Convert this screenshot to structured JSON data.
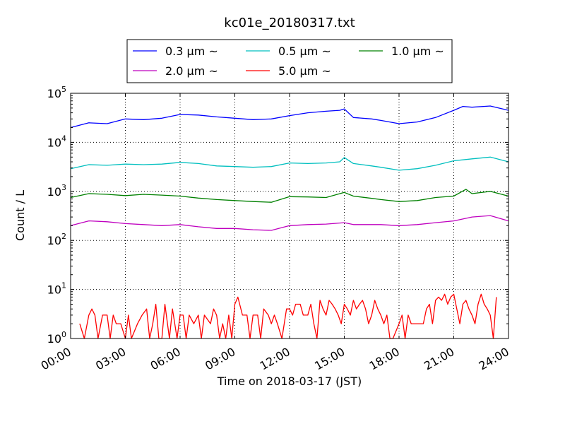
{
  "chart_data": {
    "type": "line",
    "title": "kc01e_20180317.txt",
    "xlabel": "Time on 2018-03-17 (JST)",
    "ylabel": "Count / L",
    "yscale": "log",
    "ylim": [
      1,
      100000
    ],
    "xlim": [
      "00:00",
      "24:00"
    ],
    "grid": true,
    "legend_position": "top-center",
    "x_tick_labels": [
      "00:00",
      "03:00",
      "06:00",
      "09:00",
      "12:00",
      "15:00",
      "18:00",
      "21:00",
      "24:00"
    ],
    "y_tick_labels": [
      {
        "base": "10",
        "exp": "0"
      },
      {
        "base": "10",
        "exp": "1"
      },
      {
        "base": "10",
        "exp": "2"
      },
      {
        "base": "10",
        "exp": "3"
      },
      {
        "base": "10",
        "exp": "4"
      },
      {
        "base": "10",
        "exp": "5"
      }
    ],
    "series": [
      {
        "name": "0.3 μm ~",
        "color": "#0000ff",
        "points": [
          [
            "00:00",
            20000
          ],
          [
            "01:00",
            25000
          ],
          [
            "02:00",
            24000
          ],
          [
            "03:00",
            30000
          ],
          [
            "04:00",
            29000
          ],
          [
            "05:00",
            31000
          ],
          [
            "06:00",
            37000
          ],
          [
            "07:00",
            36000
          ],
          [
            "08:00",
            33000
          ],
          [
            "09:00",
            31000
          ],
          [
            "10:00",
            29000
          ],
          [
            "11:00",
            30000
          ],
          [
            "12:00",
            35000
          ],
          [
            "13:00",
            40000
          ],
          [
            "14:00",
            43000
          ],
          [
            "14:45",
            45000
          ],
          [
            "15:00",
            48000
          ],
          [
            "15:30",
            32000
          ],
          [
            "16:30",
            30000
          ],
          [
            "17:00",
            28000
          ],
          [
            "18:00",
            24000
          ],
          [
            "19:00",
            26000
          ],
          [
            "20:00",
            32000
          ],
          [
            "21:00",
            45000
          ],
          [
            "21:30",
            54000
          ],
          [
            "22:00",
            52000
          ],
          [
            "23:00",
            55000
          ],
          [
            "24:00",
            45000
          ]
        ]
      },
      {
        "name": "0.5 μm ~",
        "color": "#00bfbf",
        "points": [
          [
            "00:00",
            2900
          ],
          [
            "01:00",
            3500
          ],
          [
            "02:00",
            3400
          ],
          [
            "03:00",
            3600
          ],
          [
            "04:00",
            3500
          ],
          [
            "05:00",
            3600
          ],
          [
            "06:00",
            3900
          ],
          [
            "07:00",
            3700
          ],
          [
            "08:00",
            3300
          ],
          [
            "09:00",
            3200
          ],
          [
            "10:00",
            3100
          ],
          [
            "11:00",
            3200
          ],
          [
            "12:00",
            3800
          ],
          [
            "13:00",
            3700
          ],
          [
            "14:00",
            3800
          ],
          [
            "14:45",
            4000
          ],
          [
            "15:00",
            4900
          ],
          [
            "15:30",
            3700
          ],
          [
            "16:30",
            3300
          ],
          [
            "17:00",
            3100
          ],
          [
            "18:00",
            2700
          ],
          [
            "19:00",
            2900
          ],
          [
            "20:00",
            3400
          ],
          [
            "21:00",
            4200
          ],
          [
            "22:00",
            4600
          ],
          [
            "23:00",
            5000
          ],
          [
            "24:00",
            4000
          ]
        ]
      },
      {
        "name": "1.0 μm ~",
        "color": "#008000",
        "points": [
          [
            "00:00",
            750
          ],
          [
            "01:00",
            900
          ],
          [
            "02:00",
            870
          ],
          [
            "03:00",
            820
          ],
          [
            "04:00",
            870
          ],
          [
            "05:00",
            840
          ],
          [
            "06:00",
            800
          ],
          [
            "07:00",
            730
          ],
          [
            "08:00",
            680
          ],
          [
            "09:00",
            650
          ],
          [
            "10:00",
            620
          ],
          [
            "11:00",
            600
          ],
          [
            "12:00",
            780
          ],
          [
            "13:00",
            770
          ],
          [
            "14:00",
            750
          ],
          [
            "15:00",
            950
          ],
          [
            "15:30",
            800
          ],
          [
            "16:30",
            720
          ],
          [
            "17:00",
            680
          ],
          [
            "18:00",
            620
          ],
          [
            "19:00",
            650
          ],
          [
            "20:00",
            750
          ],
          [
            "21:00",
            800
          ],
          [
            "21:40",
            1100
          ],
          [
            "22:00",
            900
          ],
          [
            "23:00",
            1000
          ],
          [
            "24:00",
            800
          ]
        ]
      },
      {
        "name": "2.0 μm ~",
        "color": "#bf00bf",
        "points": [
          [
            "00:00",
            200
          ],
          [
            "01:00",
            250
          ],
          [
            "02:00",
            240
          ],
          [
            "03:00",
            220
          ],
          [
            "04:00",
            210
          ],
          [
            "05:00",
            200
          ],
          [
            "06:00",
            210
          ],
          [
            "07:00",
            190
          ],
          [
            "08:00",
            175
          ],
          [
            "09:00",
            175
          ],
          [
            "10:00",
            165
          ],
          [
            "11:00",
            160
          ],
          [
            "12:00",
            200
          ],
          [
            "13:00",
            210
          ],
          [
            "14:00",
            215
          ],
          [
            "15:00",
            230
          ],
          [
            "15:30",
            210
          ],
          [
            "16:30",
            210
          ],
          [
            "17:00",
            210
          ],
          [
            "18:00",
            200
          ],
          [
            "19:00",
            210
          ],
          [
            "20:00",
            230
          ],
          [
            "21:00",
            250
          ],
          [
            "22:00",
            300
          ],
          [
            "23:00",
            320
          ],
          [
            "24:00",
            250
          ]
        ]
      },
      {
        "name": "5.0 μm ~",
        "color": "#ff0000",
        "points": [
          [
            "00:30",
            2
          ],
          [
            "00:45",
            1
          ],
          [
            "01:00",
            3
          ],
          [
            "01:10",
            4
          ],
          [
            "01:20",
            3
          ],
          [
            "01:30",
            1
          ],
          [
            "01:45",
            3
          ],
          [
            "02:00",
            3
          ],
          [
            "02:10",
            1
          ],
          [
            "02:20",
            3
          ],
          [
            "02:30",
            2
          ],
          [
            "02:45",
            2
          ],
          [
            "03:00",
            1
          ],
          [
            "03:10",
            3
          ],
          [
            "03:20",
            1
          ],
          [
            "03:40",
            2
          ],
          [
            "03:55",
            3
          ],
          [
            "04:10",
            4
          ],
          [
            "04:20",
            1
          ],
          [
            "04:30",
            2
          ],
          [
            "04:40",
            5
          ],
          [
            "04:50",
            1
          ],
          [
            "05:00",
            1
          ],
          [
            "05:10",
            5
          ],
          [
            "05:25",
            1
          ],
          [
            "05:35",
            4
          ],
          [
            "05:50",
            1
          ],
          [
            "06:00",
            3
          ],
          [
            "06:10",
            3
          ],
          [
            "06:20",
            1
          ],
          [
            "06:30",
            3
          ],
          [
            "06:45",
            2
          ],
          [
            "07:00",
            3
          ],
          [
            "07:10",
            1
          ],
          [
            "07:20",
            3
          ],
          [
            "07:40",
            2
          ],
          [
            "07:50",
            4
          ],
          [
            "08:00",
            3
          ],
          [
            "08:10",
            1
          ],
          [
            "08:20",
            2
          ],
          [
            "08:30",
            1
          ],
          [
            "08:40",
            3
          ],
          [
            "08:50",
            1
          ],
          [
            "09:00",
            5
          ],
          [
            "09:10",
            7
          ],
          [
            "09:25",
            3
          ],
          [
            "09:40",
            3
          ],
          [
            "09:50",
            1
          ],
          [
            "10:00",
            3
          ],
          [
            "10:15",
            3
          ],
          [
            "10:25",
            1
          ],
          [
            "10:35",
            4
          ],
          [
            "10:50",
            3
          ],
          [
            "11:00",
            2
          ],
          [
            "11:10",
            3
          ],
          [
            "11:20",
            2
          ],
          [
            "11:35",
            1
          ],
          [
            "11:50",
            4
          ],
          [
            "12:00",
            4
          ],
          [
            "12:10",
            3
          ],
          [
            "12:20",
            5
          ],
          [
            "12:35",
            5
          ],
          [
            "12:45",
            3
          ],
          [
            "13:00",
            3
          ],
          [
            "13:10",
            5
          ],
          [
            "13:20",
            2
          ],
          [
            "13:30",
            1
          ],
          [
            "13:40",
            6
          ],
          [
            "13:50",
            4
          ],
          [
            "14:00",
            3
          ],
          [
            "14:10",
            6
          ],
          [
            "14:20",
            5
          ],
          [
            "14:30",
            4
          ],
          [
            "14:40",
            3
          ],
          [
            "14:50",
            2
          ],
          [
            "15:00",
            5
          ],
          [
            "15:10",
            4
          ],
          [
            "15:20",
            3
          ],
          [
            "15:30",
            6
          ],
          [
            "15:40",
            4
          ],
          [
            "15:50",
            5
          ],
          [
            "16:00",
            6
          ],
          [
            "16:10",
            4
          ],
          [
            "16:20",
            2
          ],
          [
            "16:30",
            3
          ],
          [
            "16:40",
            6
          ],
          [
            "16:50",
            4
          ],
          [
            "17:00",
            3
          ],
          [
            "17:10",
            2
          ],
          [
            "17:20",
            3
          ],
          [
            "17:30",
            1
          ],
          [
            "17:40",
            1
          ],
          [
            "18:00",
            2
          ],
          [
            "18:10",
            3
          ],
          [
            "18:20",
            1
          ],
          [
            "18:30",
            3
          ],
          [
            "18:40",
            2
          ],
          [
            "19:00",
            2
          ],
          [
            "19:20",
            2
          ],
          [
            "19:30",
            4
          ],
          [
            "19:40",
            5
          ],
          [
            "19:50",
            2
          ],
          [
            "20:00",
            6
          ],
          [
            "20:10",
            7
          ],
          [
            "20:20",
            6
          ],
          [
            "20:30",
            8
          ],
          [
            "20:40",
            5
          ],
          [
            "20:50",
            7
          ],
          [
            "21:00",
            8
          ],
          [
            "21:10",
            4
          ],
          [
            "21:20",
            2
          ],
          [
            "21:30",
            5
          ],
          [
            "21:40",
            6
          ],
          [
            "21:50",
            4
          ],
          [
            "22:00",
            3
          ],
          [
            "22:10",
            2
          ],
          [
            "22:20",
            5
          ],
          [
            "22:30",
            8
          ],
          [
            "22:40",
            5
          ],
          [
            "22:50",
            4
          ],
          [
            "23:00",
            3
          ],
          [
            "23:10",
            1
          ],
          [
            "23:20",
            7
          ]
        ]
      }
    ]
  }
}
